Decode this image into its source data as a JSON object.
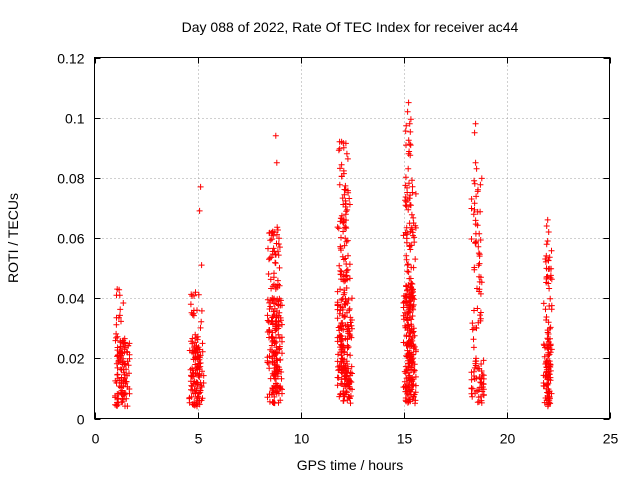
{
  "chart_data": {
    "type": "scatter",
    "title": "Day 088 of 2022, Rate Of TEC Index for receiver ac44",
    "xlabel": "GPS time / hours",
    "ylabel": "ROTI / TECUs",
    "xlim": [
      0,
      25
    ],
    "ylim": [
      0,
      0.12
    ],
    "x_ticks": [
      0,
      5,
      10,
      15,
      20,
      25
    ],
    "y_ticks": [
      0,
      0.02,
      0.04,
      0.06,
      0.08,
      0.1,
      0.12
    ],
    "x_tick_labels": [
      "0",
      "5",
      "10",
      "15",
      "20",
      "25"
    ],
    "y_tick_labels": [
      "0",
      "0.02",
      "0.04",
      "0.06",
      "0.08",
      "0.1",
      "0.12"
    ],
    "grid": true,
    "legend": "none",
    "marker": "+",
    "color": "#ff0000",
    "series": [
      {
        "clusters": [
          {
            "x_range": [
              1.0,
              1.7
            ],
            "y_range": [
              0.004,
              0.027
            ],
            "n": 110
          },
          {
            "x_range": [
              1.0,
              1.4
            ],
            "y_range": [
              0.027,
              0.043
            ],
            "n": 12
          },
          {
            "x_range": [
              4.6,
              5.3
            ],
            "y_range": [
              0.004,
              0.026
            ],
            "n": 110
          },
          {
            "x_range": [
              4.6,
              5.3
            ],
            "y_range": [
              0.026,
              0.042
            ],
            "n": 20
          },
          {
            "x_range": [
              8.4,
              9.1
            ],
            "y_range": [
              0.005,
              0.04
            ],
            "n": 170
          },
          {
            "x_range": [
              8.4,
              9.0
            ],
            "y_range": [
              0.04,
              0.065
            ],
            "n": 45
          },
          {
            "x_range": [
              11.8,
              12.5
            ],
            "y_range": [
              0.005,
              0.04
            ],
            "n": 170
          },
          {
            "x_range": [
              11.8,
              12.4
            ],
            "y_range": [
              0.04,
              0.078
            ],
            "n": 70
          },
          {
            "x_range": [
              11.8,
              12.3
            ],
            "y_range": [
              0.078,
              0.092
            ],
            "n": 12
          },
          {
            "x_range": [
              15.0,
              15.6
            ],
            "y_range": [
              0.005,
              0.045
            ],
            "n": 210
          },
          {
            "x_range": [
              15.0,
              15.6
            ],
            "y_range": [
              0.045,
              0.08
            ],
            "n": 55
          },
          {
            "x_range": [
              15.1,
              15.4
            ],
            "y_range": [
              0.08,
              0.1
            ],
            "n": 12
          },
          {
            "x_range": [
              18.3,
              18.9
            ],
            "y_range": [
              0.005,
              0.02
            ],
            "n": 50
          },
          {
            "x_range": [
              18.3,
              18.8
            ],
            "y_range": [
              0.02,
              0.08
            ],
            "n": 55
          },
          {
            "x_range": [
              21.8,
              22.2
            ],
            "y_range": [
              0.004,
              0.025
            ],
            "n": 80
          },
          {
            "x_range": [
              21.8,
              22.2
            ],
            "y_range": [
              0.025,
              0.06
            ],
            "n": 40
          }
        ],
        "outliers": [
          {
            "x": 1.1,
            "y": 0.043
          },
          {
            "x": 5.15,
            "y": 0.077
          },
          {
            "x": 5.1,
            "y": 0.069
          },
          {
            "x": 5.2,
            "y": 0.051
          },
          {
            "x": 8.8,
            "y": 0.094
          },
          {
            "x": 8.85,
            "y": 0.085
          },
          {
            "x": 11.9,
            "y": 0.092
          },
          {
            "x": 12.1,
            "y": 0.09
          },
          {
            "x": 12.25,
            "y": 0.088
          },
          {
            "x": 15.25,
            "y": 0.105
          },
          {
            "x": 15.2,
            "y": 0.102
          },
          {
            "x": 15.3,
            "y": 0.098
          },
          {
            "x": 15.25,
            "y": 0.088
          },
          {
            "x": 18.5,
            "y": 0.098
          },
          {
            "x": 18.45,
            "y": 0.095
          },
          {
            "x": 18.5,
            "y": 0.085
          },
          {
            "x": 18.55,
            "y": 0.083
          },
          {
            "x": 22.0,
            "y": 0.066
          },
          {
            "x": 21.95,
            "y": 0.064
          },
          {
            "x": 22.05,
            "y": 0.062
          }
        ]
      }
    ]
  }
}
